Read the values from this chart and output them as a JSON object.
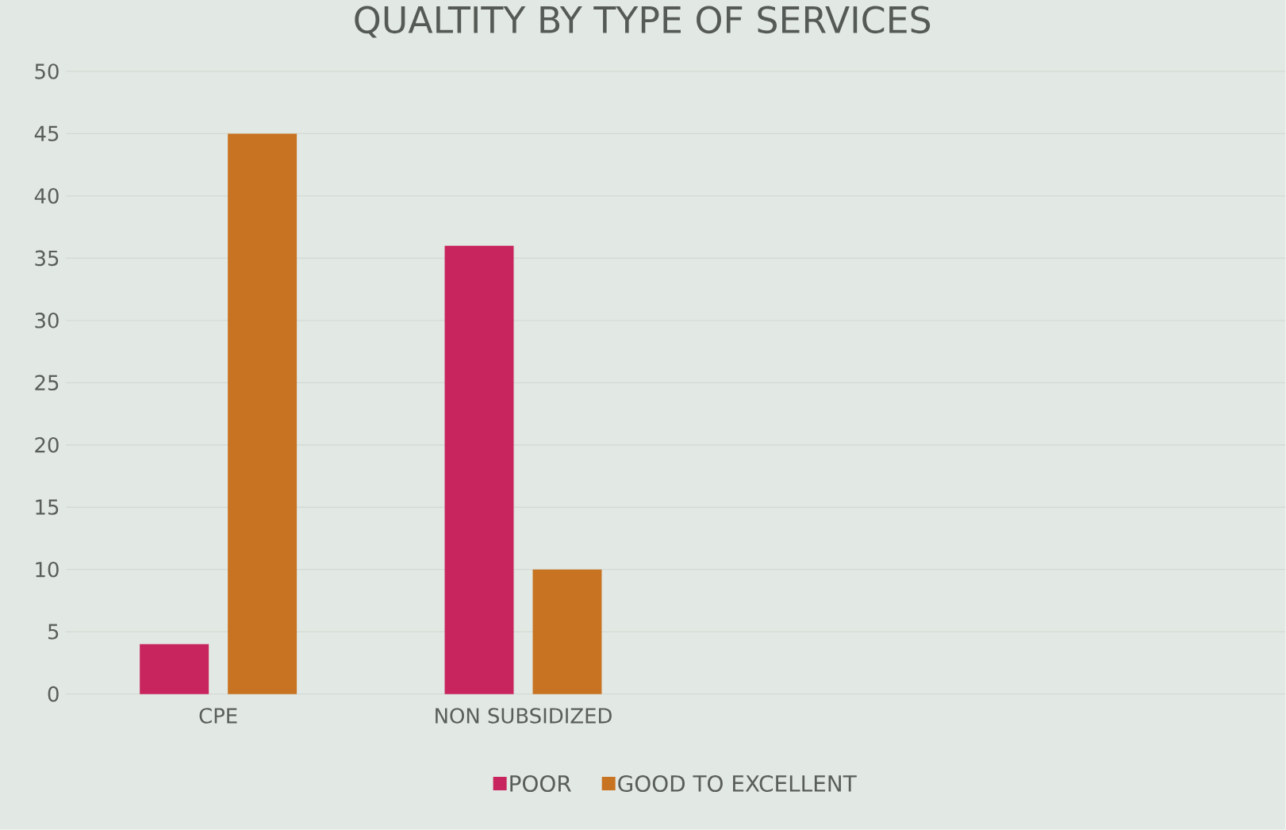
{
  "chart_data": {
    "type": "bar",
    "title": "QUALTITY BY TYPE OF SERVICES",
    "categories": [
      "CPE",
      "NON SUBSIDIZED",
      null,
      null
    ],
    "series": [
      {
        "name": "POOR",
        "color": "#c8255e",
        "values": [
          4,
          36,
          null,
          null
        ]
      },
      {
        "name": "GOOD TO EXCELLENT",
        "color": "#c87321",
        "values": [
          45,
          10,
          null,
          null
        ]
      }
    ],
    "ylim": [
      0,
      50
    ],
    "yticks": [
      0,
      5,
      10,
      15,
      20,
      25,
      30,
      35,
      40,
      45,
      50
    ],
    "grid": "y",
    "legend": "bottom"
  }
}
